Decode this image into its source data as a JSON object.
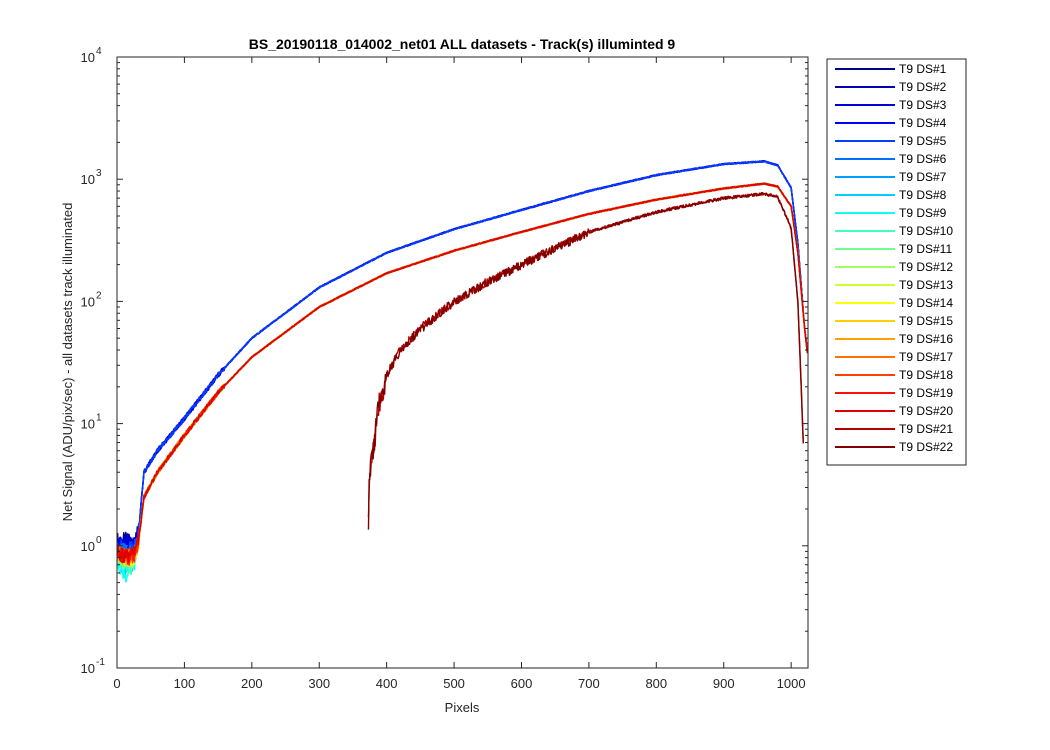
{
  "chart_data": {
    "type": "line",
    "title": "BS_20190118_014002_net01 ALL datasets - Track(s) illuminted 9",
    "xlabel": "Pixels",
    "ylabel": "Net Signal (ADU/pix/sec) - all datasets track illuminated",
    "xlim": [
      0,
      1025
    ],
    "ylim": [
      0.1,
      10000
    ],
    "yscale": "log",
    "grid": false,
    "legend_position": "outside-right",
    "x_ticks": [
      0,
      100,
      200,
      300,
      400,
      500,
      600,
      700,
      800,
      900,
      1000
    ],
    "x_tick_labels": [
      "0",
      "100",
      "200",
      "300",
      "400",
      "500",
      "600",
      "700",
      "800",
      "900",
      "1000"
    ],
    "y_ticks": [
      0.1,
      1,
      10,
      100,
      1000,
      10000
    ],
    "y_tick_labels": [
      {
        "base": "10",
        "exp": "-1"
      },
      {
        "base": "10",
        "exp": "0"
      },
      {
        "base": "10",
        "exp": "1"
      },
      {
        "base": "10",
        "exp": "2"
      },
      {
        "base": "10",
        "exp": "3"
      },
      {
        "base": "10",
        "exp": "4"
      }
    ],
    "series": [
      {
        "name": "T9 DS#1",
        "color": "#00008f",
        "profile": "blue",
        "x": [
          0,
          15,
          25,
          32,
          40,
          60,
          100,
          150,
          200,
          300,
          400,
          500,
          600,
          700,
          800,
          900,
          960,
          980,
          1000,
          1010,
          1020,
          1024
        ],
        "y": [
          1.1,
          1.1,
          1.05,
          1.3,
          4,
          6,
          11,
          25,
          50,
          130,
          250,
          390,
          560,
          800,
          1080,
          1330,
          1400,
          1300,
          850,
          300,
          60,
          40
        ]
      },
      {
        "name": "T9 DS#2",
        "color": "#0000b4",
        "profile": "blue",
        "x": [
          0,
          15,
          25,
          32,
          40,
          60,
          100,
          150,
          200,
          300,
          400,
          500,
          600,
          700,
          800,
          900,
          960,
          980,
          1000,
          1010,
          1020,
          1024
        ],
        "y": [
          1.05,
          1.08,
          1.0,
          1.3,
          4,
          6,
          11,
          25,
          50,
          130,
          250,
          390,
          560,
          800,
          1080,
          1330,
          1400,
          1300,
          850,
          300,
          60,
          40
        ]
      },
      {
        "name": "T9 DS#3",
        "color": "#0000d8",
        "profile": "blue",
        "x": [
          0,
          15,
          25,
          32,
          40,
          60,
          100,
          150,
          200,
          300,
          400,
          500,
          600,
          700,
          800,
          900,
          960,
          980,
          1000,
          1010,
          1020,
          1024
        ],
        "y": [
          1.0,
          1.05,
          0.98,
          1.3,
          4,
          6,
          11,
          25,
          50,
          130,
          250,
          390,
          560,
          800,
          1080,
          1330,
          1400,
          1300,
          850,
          300,
          60,
          40
        ]
      },
      {
        "name": "T9 DS#4",
        "color": "#0000ff",
        "profile": "blue",
        "x": [
          0,
          15,
          25,
          32,
          40,
          60,
          100,
          150,
          200,
          300,
          400,
          500,
          600,
          700,
          800,
          900,
          960,
          980,
          1000,
          1010,
          1020,
          1024
        ],
        "y": [
          1.0,
          1.0,
          0.95,
          1.3,
          4,
          6,
          11,
          25,
          50,
          130,
          250,
          390,
          560,
          800,
          1080,
          1330,
          1400,
          1300,
          850,
          300,
          60,
          40
        ]
      },
      {
        "name": "T9 DS#5",
        "color": "#0040ff",
        "profile": "blue",
        "x": [
          0,
          15,
          25,
          32,
          40,
          60,
          100,
          150,
          200,
          300,
          400,
          500,
          600,
          700,
          800,
          900,
          960,
          980,
          1000,
          1010,
          1020,
          1024
        ],
        "y": [
          0.95,
          0.97,
          0.92,
          1.3,
          4,
          6,
          11,
          25,
          50,
          130,
          250,
          390,
          560,
          800,
          1080,
          1330,
          1400,
          1300,
          850,
          300,
          60,
          40
        ]
      },
      {
        "name": "T9 DS#6",
        "color": "#0070ff",
        "profile": "red",
        "x": [
          0,
          15,
          25,
          32,
          40,
          60,
          100,
          150,
          200,
          300,
          400,
          500,
          600,
          700,
          800,
          900,
          960,
          980,
          1000,
          1010,
          1020,
          1024
        ],
        "y": [
          0.9,
          0.9,
          0.85,
          1.1,
          2.5,
          4,
          8,
          18,
          35,
          90,
          170,
          260,
          370,
          520,
          680,
          840,
          920,
          870,
          600,
          250,
          60,
          38
        ]
      },
      {
        "name": "T9 DS#7",
        "color": "#00a0ff",
        "profile": "red",
        "x": [
          0,
          15,
          25,
          32,
          40,
          60,
          100,
          150,
          200,
          300,
          400,
          500,
          600,
          700,
          800,
          900,
          960,
          980,
          1000,
          1010,
          1020,
          1024
        ],
        "y": [
          0.85,
          0.7,
          0.8,
          1.1,
          2.5,
          4,
          8,
          18,
          35,
          90,
          170,
          260,
          370,
          520,
          680,
          840,
          920,
          870,
          600,
          250,
          60,
          38
        ]
      },
      {
        "name": "T9 DS#8",
        "color": "#00d0ff",
        "profile": "red",
        "x": [
          0,
          15,
          25,
          32,
          40,
          60,
          100,
          150,
          200,
          300,
          400,
          500,
          600,
          700,
          800,
          900,
          960,
          980,
          1000,
          1010,
          1020,
          1024
        ],
        "y": [
          0.8,
          0.6,
          0.75,
          1.1,
          2.5,
          4,
          8,
          18,
          35,
          90,
          170,
          260,
          370,
          520,
          680,
          840,
          920,
          870,
          600,
          250,
          60,
          38
        ]
      },
      {
        "name": "T9 DS#9",
        "color": "#10ffef",
        "profile": "red",
        "x": [
          0,
          15,
          25,
          32,
          40,
          60,
          100,
          150,
          200,
          300,
          400,
          500,
          600,
          700,
          800,
          900,
          960,
          980,
          1000,
          1010,
          1020,
          1024
        ],
        "y": [
          0.75,
          0.55,
          0.7,
          1.1,
          2.5,
          4,
          8,
          18,
          35,
          90,
          170,
          260,
          370,
          520,
          680,
          840,
          920,
          870,
          600,
          250,
          60,
          38
        ]
      },
      {
        "name": "T9 DS#10",
        "color": "#40ffbf",
        "profile": "red",
        "x": [
          0,
          15,
          25,
          32,
          40,
          60,
          100,
          150,
          200,
          300,
          400,
          500,
          600,
          700,
          800,
          900,
          960,
          980,
          1000,
          1010,
          1020,
          1024
        ],
        "y": [
          0.8,
          0.65,
          0.72,
          1.1,
          2.5,
          4,
          8,
          18,
          35,
          90,
          170,
          260,
          370,
          520,
          680,
          840,
          920,
          870,
          600,
          250,
          60,
          38
        ]
      },
      {
        "name": "T9 DS#11",
        "color": "#70ff8f",
        "profile": "red",
        "x": [
          0,
          15,
          25,
          32,
          40,
          60,
          100,
          150,
          200,
          300,
          400,
          500,
          600,
          700,
          800,
          900,
          960,
          980,
          1000,
          1010,
          1020,
          1024
        ],
        "y": [
          0.82,
          0.7,
          0.75,
          1.1,
          2.5,
          4,
          8,
          18,
          35,
          90,
          170,
          260,
          370,
          520,
          680,
          840,
          920,
          870,
          600,
          250,
          60,
          38
        ]
      },
      {
        "name": "T9 DS#12",
        "color": "#a0ff60",
        "profile": "red",
        "x": [
          0,
          15,
          25,
          32,
          40,
          60,
          100,
          150,
          200,
          300,
          400,
          500,
          600,
          700,
          800,
          900,
          960,
          980,
          1000,
          1010,
          1020,
          1024
        ],
        "y": [
          0.85,
          0.75,
          0.78,
          1.1,
          2.5,
          4,
          8,
          18,
          35,
          90,
          170,
          260,
          370,
          520,
          680,
          840,
          920,
          870,
          600,
          250,
          60,
          38
        ]
      },
      {
        "name": "T9 DS#13",
        "color": "#cfff30",
        "profile": "red",
        "x": [
          0,
          15,
          25,
          32,
          40,
          60,
          100,
          150,
          200,
          300,
          400,
          500,
          600,
          700,
          800,
          900,
          960,
          980,
          1000,
          1010,
          1020,
          1024
        ],
        "y": [
          0.85,
          0.78,
          0.8,
          1.1,
          2.5,
          4,
          8,
          18,
          35,
          90,
          170,
          260,
          370,
          520,
          680,
          840,
          920,
          870,
          600,
          250,
          60,
          38
        ]
      },
      {
        "name": "T9 DS#14",
        "color": "#ffff00",
        "profile": "red",
        "x": [
          0,
          15,
          25,
          32,
          40,
          60,
          100,
          150,
          200,
          300,
          400,
          500,
          600,
          700,
          800,
          900,
          960,
          980,
          1000,
          1010,
          1020,
          1024
        ],
        "y": [
          0.86,
          0.8,
          0.8,
          1.1,
          2.5,
          4,
          8,
          18,
          35,
          90,
          170,
          260,
          370,
          520,
          680,
          840,
          920,
          870,
          600,
          250,
          60,
          38
        ]
      },
      {
        "name": "T9 DS#15",
        "color": "#ffcf00",
        "profile": "red",
        "x": [
          0,
          15,
          25,
          32,
          40,
          60,
          100,
          150,
          200,
          300,
          400,
          500,
          600,
          700,
          800,
          900,
          960,
          980,
          1000,
          1010,
          1020,
          1024
        ],
        "y": [
          0.86,
          0.8,
          0.82,
          1.1,
          2.5,
          4,
          8,
          18,
          35,
          90,
          170,
          260,
          370,
          520,
          680,
          840,
          920,
          870,
          600,
          250,
          60,
          38
        ]
      },
      {
        "name": "T9 DS#16",
        "color": "#ff9f00",
        "profile": "red",
        "x": [
          0,
          15,
          25,
          32,
          40,
          60,
          100,
          150,
          200,
          300,
          400,
          500,
          600,
          700,
          800,
          900,
          960,
          980,
          1000,
          1010,
          1020,
          1024
        ],
        "y": [
          0.87,
          0.8,
          0.82,
          1.1,
          2.5,
          4,
          8,
          18,
          35,
          90,
          170,
          260,
          370,
          520,
          680,
          840,
          920,
          870,
          600,
          250,
          60,
          38
        ]
      },
      {
        "name": "T9 DS#17",
        "color": "#ff7000",
        "profile": "red",
        "x": [
          0,
          15,
          25,
          32,
          40,
          60,
          100,
          150,
          200,
          300,
          400,
          500,
          600,
          700,
          800,
          900,
          960,
          980,
          1000,
          1010,
          1020,
          1024
        ],
        "y": [
          0.87,
          0.8,
          0.83,
          1.1,
          2.5,
          4,
          8,
          18,
          35,
          90,
          170,
          260,
          370,
          520,
          680,
          840,
          920,
          870,
          600,
          250,
          60,
          38
        ]
      },
      {
        "name": "T9 DS#18",
        "color": "#ff4000",
        "profile": "red",
        "x": [
          0,
          15,
          25,
          32,
          40,
          60,
          100,
          150,
          200,
          300,
          400,
          500,
          600,
          700,
          800,
          900,
          960,
          980,
          1000,
          1010,
          1020,
          1024
        ],
        "y": [
          0.88,
          0.8,
          0.83,
          1.1,
          2.5,
          4,
          8,
          18,
          35,
          90,
          170,
          260,
          370,
          520,
          680,
          840,
          920,
          870,
          600,
          250,
          60,
          38
        ]
      },
      {
        "name": "T9 DS#19",
        "color": "#ff1000",
        "profile": "red",
        "x": [
          0,
          15,
          25,
          32,
          40,
          60,
          100,
          150,
          200,
          300,
          400,
          500,
          600,
          700,
          800,
          900,
          960,
          980,
          1000,
          1010,
          1020,
          1024
        ],
        "y": [
          0.88,
          0.8,
          0.84,
          1.1,
          2.5,
          4,
          8,
          18,
          35,
          90,
          170,
          260,
          370,
          520,
          680,
          840,
          920,
          870,
          600,
          250,
          60,
          38
        ]
      },
      {
        "name": "T9 DS#20",
        "color": "#df0000",
        "profile": "red",
        "x": [
          0,
          15,
          25,
          32,
          40,
          60,
          100,
          150,
          200,
          300,
          400,
          500,
          600,
          700,
          800,
          900,
          960,
          980,
          1000,
          1010,
          1020,
          1024
        ],
        "y": [
          0.88,
          0.8,
          0.85,
          1.1,
          2.5,
          4,
          8,
          18,
          35,
          90,
          170,
          260,
          370,
          520,
          680,
          840,
          920,
          870,
          600,
          250,
          60,
          38
        ]
      },
      {
        "name": "T9 DS#21",
        "color": "#b00000",
        "profile": "late",
        "x": [
          373,
          374,
          376,
          378,
          380,
          382,
          384,
          386,
          390,
          400,
          420,
          450,
          500,
          550,
          600,
          700,
          800,
          900,
          960,
          980,
          1000,
          1010,
          1015,
          1018
        ],
        "y": [
          1.5,
          3,
          4.5,
          5.5,
          6.5,
          7,
          9,
          12,
          16,
          25,
          40,
          60,
          100,
          145,
          200,
          370,
          540,
          700,
          760,
          720,
          400,
          100,
          20,
          7
        ]
      },
      {
        "name": "T9 DS#22",
        "color": "#800000",
        "profile": "late",
        "x": [
          373,
          374,
          376,
          378,
          380,
          382,
          384,
          386,
          390,
          400,
          420,
          450,
          500,
          550,
          600,
          700,
          800,
          900,
          960,
          980,
          1000,
          1010,
          1015,
          1018
        ],
        "y": [
          1.45,
          2.9,
          4.4,
          5.4,
          6.4,
          6.9,
          8.9,
          11.8,
          15.8,
          24.8,
          39.5,
          59,
          99,
          144,
          199,
          368,
          538,
          698,
          758,
          718,
          398,
          99,
          19,
          7
        ]
      }
    ]
  }
}
